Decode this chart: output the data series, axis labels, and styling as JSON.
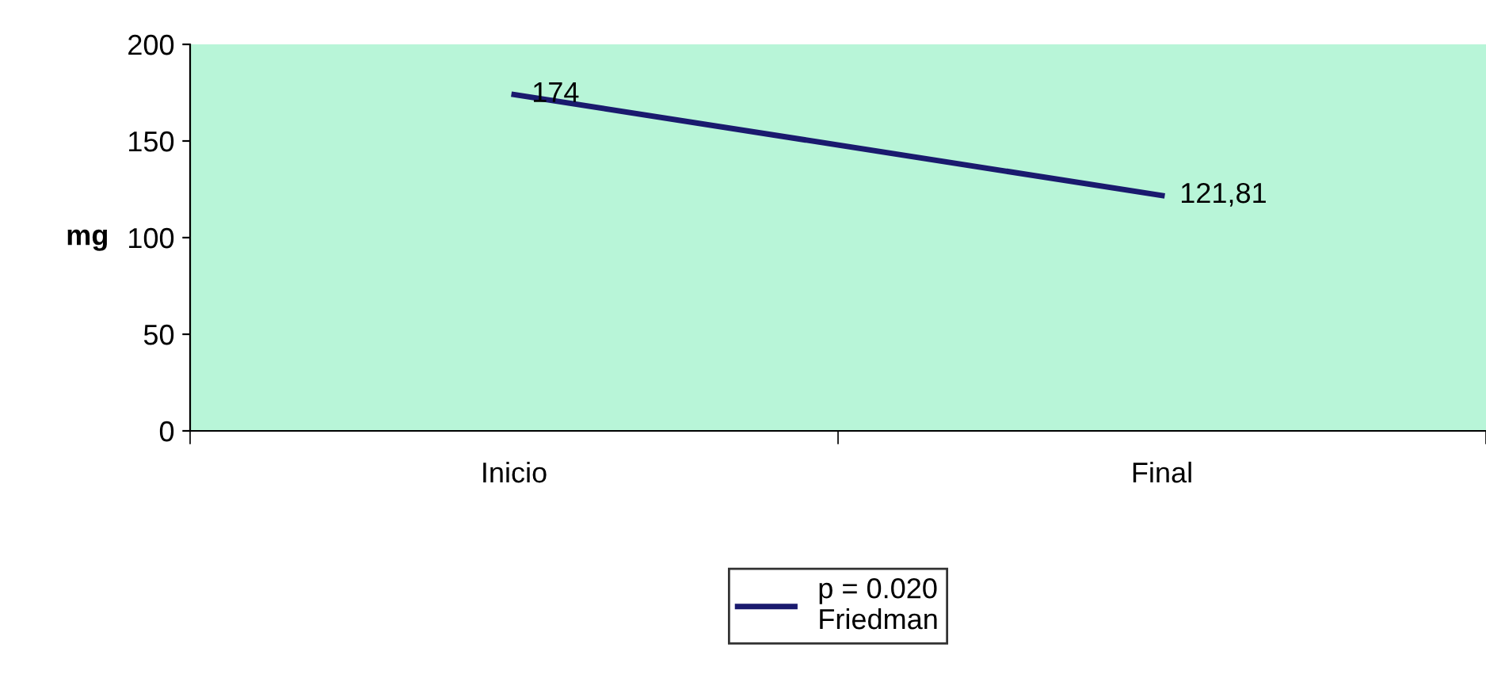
{
  "chart_data": {
    "type": "line",
    "ylabel": "mg",
    "categories": [
      "Inicio",
      "Final"
    ],
    "series": [
      {
        "name": "p = 0.020\nFriedman",
        "color": "#1a1a6e",
        "values": [
          174,
          121.81
        ],
        "value_labels": [
          "174",
          "121,81"
        ]
      }
    ],
    "ylim": [
      0,
      200
    ],
    "yticks": [
      0,
      50,
      100,
      150,
      200
    ],
    "grid": false,
    "legend": "bottom",
    "marker": "none",
    "line_style": "solid"
  }
}
